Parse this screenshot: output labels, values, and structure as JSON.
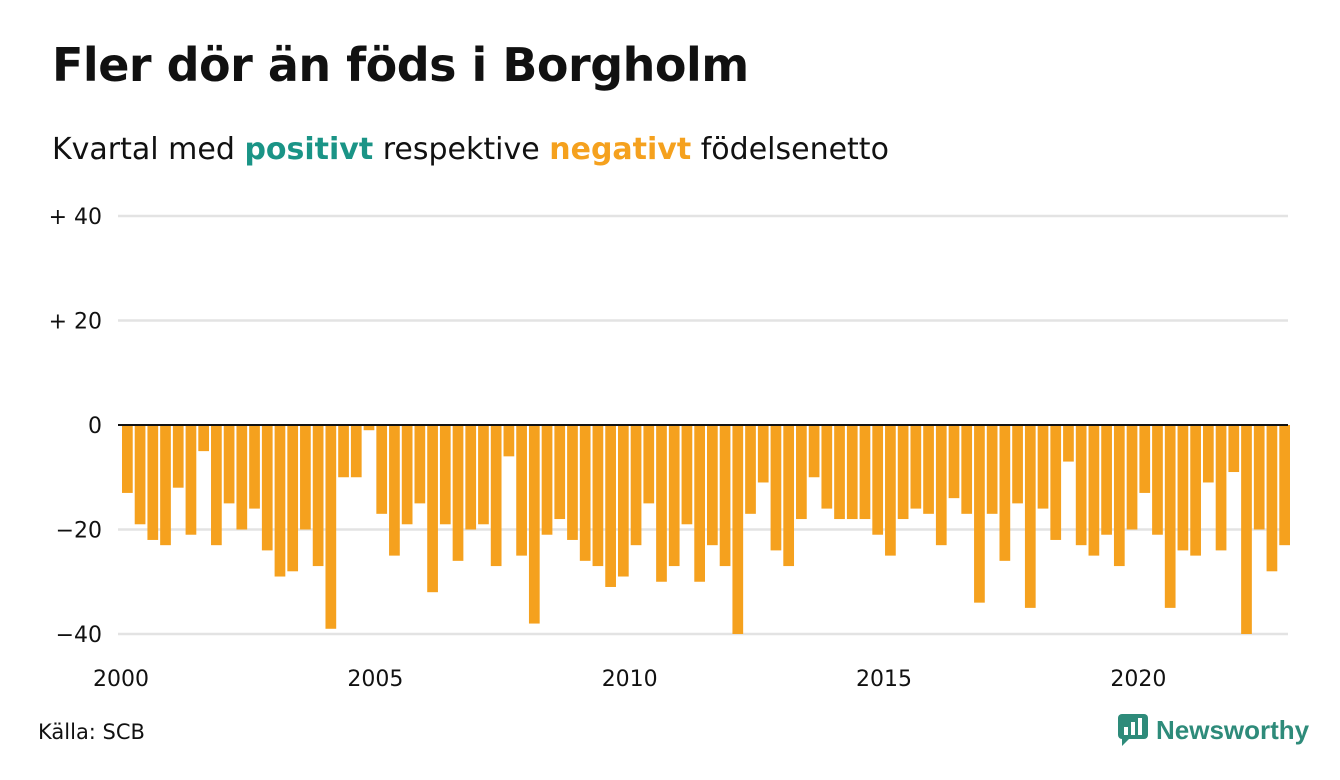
{
  "header": {
    "title": "Fler dör än föds i Borgholm",
    "subtitle_prefix": "Kvartal med",
    "subtitle_positive": "positivt",
    "subtitle_middle": "respektive",
    "subtitle_negative": "negativt",
    "subtitle_suffix": "födelsenetto"
  },
  "footer": {
    "source": "Källa: SCB",
    "logo_text": "Newsworthy",
    "logo_icon": "newsworthy-chart-icon"
  },
  "colors": {
    "positive": "#1a9486",
    "negative": "#f5a11e",
    "grid": "#e3e3e3",
    "zero_line": "#111111",
    "logo": "#2e8b7a"
  },
  "chart_data": {
    "type": "bar",
    "title": "Fler dör än föds i Borgholm",
    "subtitle": "Kvartal med positivt respektive negativt födelsenetto",
    "xlabel": "",
    "ylabel": "",
    "ylim": [
      -40,
      40
    ],
    "x_start": 2000,
    "x_end": 2023,
    "y_ticks": [
      {
        "value": 40,
        "label": "+ 40"
      },
      {
        "value": 20,
        "label": "+ 20"
      },
      {
        "value": 0,
        "label": "0"
      },
      {
        "value": -20,
        "label": "−20"
      },
      {
        "value": -40,
        "label": "−40"
      }
    ],
    "x_ticks": [
      {
        "value": 2000,
        "label": "2000"
      },
      {
        "value": 2005,
        "label": "2005"
      },
      {
        "value": 2010,
        "label": "2010"
      },
      {
        "value": 2015,
        "label": "2015"
      },
      {
        "value": 2020,
        "label": "2020"
      }
    ],
    "grid": true,
    "legend": "none",
    "series": [
      {
        "values": [
          -13,
          -19,
          -22,
          -23,
          -12,
          -21,
          -5,
          -23,
          -15,
          -20,
          -16,
          -24,
          -29,
          -28,
          -20,
          -27,
          -39,
          -10,
          -10,
          -1,
          -17,
          -25,
          -19,
          -15,
          -32,
          -19,
          -26,
          -20,
          -19,
          -27,
          -6,
          -25,
          -38,
          -21,
          -18,
          -22,
          -26,
          -27,
          -31,
          -29,
          -23,
          -15,
          -30,
          -27,
          -19,
          -30,
          -23,
          -27,
          -40,
          -17,
          -11,
          -24,
          -27,
          -18,
          -10,
          -16,
          -18,
          -18,
          -18,
          -21,
          -25,
          -18,
          -16,
          -17,
          -23,
          -14,
          -17,
          -34,
          -17,
          -26,
          -15,
          -35,
          -16,
          -22,
          -7,
          -23,
          -25,
          -21,
          -27,
          -20,
          -13,
          -21,
          -35,
          -24,
          -25,
          -11,
          -24,
          -9,
          -40,
          -20,
          -28,
          -23
        ]
      }
    ]
  }
}
